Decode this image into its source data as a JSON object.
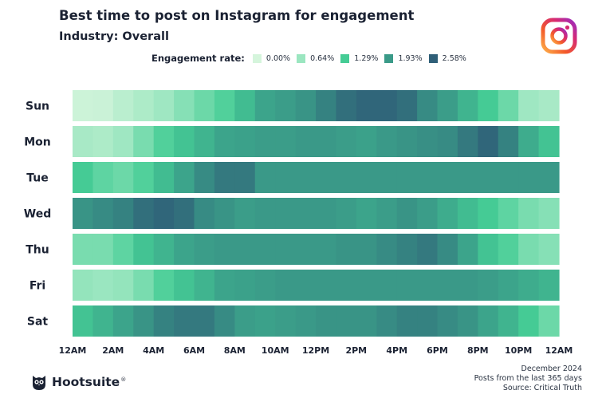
{
  "header": {
    "title": "Best time to post on Instagram for engagement",
    "subtitle": "Industry: Overall"
  },
  "legend": {
    "title": "Engagement rate:",
    "items": [
      {
        "label": "0.00%",
        "color": "#d5f5dc"
      },
      {
        "label": "0.64%",
        "color": "#9be6c0"
      },
      {
        "label": "1.29%",
        "color": "#45cc95"
      },
      {
        "label": "1.93%",
        "color": "#3a9a88"
      },
      {
        "label": "2.58%",
        "color": "#2f5f78"
      }
    ]
  },
  "colors": {
    "scale_stops": [
      "#d5f5dc",
      "#9be6c0",
      "#45cc95",
      "#3a9a88",
      "#2f5f78"
    ],
    "text": "#1b2233"
  },
  "chart_data": {
    "type": "heatmap",
    "title": "Best time to post on Instagram for engagement",
    "subtitle": "Industry: Overall",
    "y_categories": [
      "Sun",
      "Mon",
      "Tue",
      "Wed",
      "Thu",
      "Fri",
      "Sat"
    ],
    "x_tick_labels": [
      "12AM",
      "2AM",
      "4AM",
      "6AM",
      "8AM",
      "10AM",
      "12PM",
      "2PM",
      "4PM",
      "6PM",
      "8PM",
      "10PM",
      "12AM"
    ],
    "value_unit": "%",
    "value_range": [
      0.0,
      2.58
    ],
    "values": [
      [
        0.1,
        0.12,
        0.3,
        0.45,
        0.6,
        0.8,
        1.0,
        1.2,
        1.5,
        1.8,
        1.9,
        2.0,
        2.2,
        2.4,
        2.5,
        2.5,
        2.4,
        2.1,
        1.9,
        1.6,
        1.3,
        1.0,
        0.6,
        0.5
      ],
      [
        0.5,
        0.45,
        0.6,
        0.9,
        1.2,
        1.4,
        1.6,
        1.8,
        1.85,
        1.9,
        1.9,
        1.95,
        1.95,
        1.9,
        1.85,
        1.95,
        2.0,
        2.05,
        2.1,
        2.3,
        2.5,
        2.2,
        1.7,
        1.4
      ],
      [
        1.3,
        1.1,
        1.0,
        1.2,
        1.5,
        1.8,
        2.1,
        2.3,
        2.3,
        1.95,
        1.95,
        1.95,
        1.95,
        1.95,
        1.95,
        1.95,
        1.95,
        1.95,
        1.95,
        1.95,
        1.95,
        1.95,
        1.95,
        1.95
      ],
      [
        2.0,
        2.1,
        2.2,
        2.4,
        2.5,
        2.4,
        2.1,
        2.0,
        1.9,
        1.95,
        1.95,
        1.95,
        1.95,
        1.9,
        1.8,
        1.9,
        2.0,
        1.9,
        1.7,
        1.5,
        1.3,
        1.1,
        0.9,
        0.8
      ],
      [
        0.9,
        0.9,
        1.1,
        1.4,
        1.6,
        1.8,
        1.9,
        1.95,
        1.95,
        1.95,
        1.95,
        1.95,
        1.95,
        2.0,
        2.0,
        2.1,
        2.2,
        2.3,
        2.1,
        1.8,
        1.4,
        1.2,
        0.9,
        0.8
      ],
      [
        0.7,
        0.65,
        0.7,
        0.9,
        1.2,
        1.4,
        1.6,
        1.8,
        1.85,
        1.9,
        1.95,
        1.95,
        1.95,
        1.95,
        1.95,
        1.95,
        1.95,
        1.95,
        1.95,
        1.95,
        1.9,
        1.8,
        1.7,
        1.6
      ],
      [
        1.4,
        1.6,
        1.8,
        2.0,
        2.2,
        2.3,
        2.3,
        2.1,
        1.9,
        1.85,
        1.9,
        1.95,
        2.0,
        2.0,
        2.0,
        2.1,
        2.2,
        2.2,
        2.1,
        2.0,
        1.8,
        1.6,
        1.3,
        1.0
      ]
    ]
  },
  "footer": {
    "brand": "Hootsuite",
    "brand_mark": "®",
    "date": "December 2024",
    "posts_note": "Posts from the last 365 days",
    "source": "Source: Critical Truth"
  }
}
